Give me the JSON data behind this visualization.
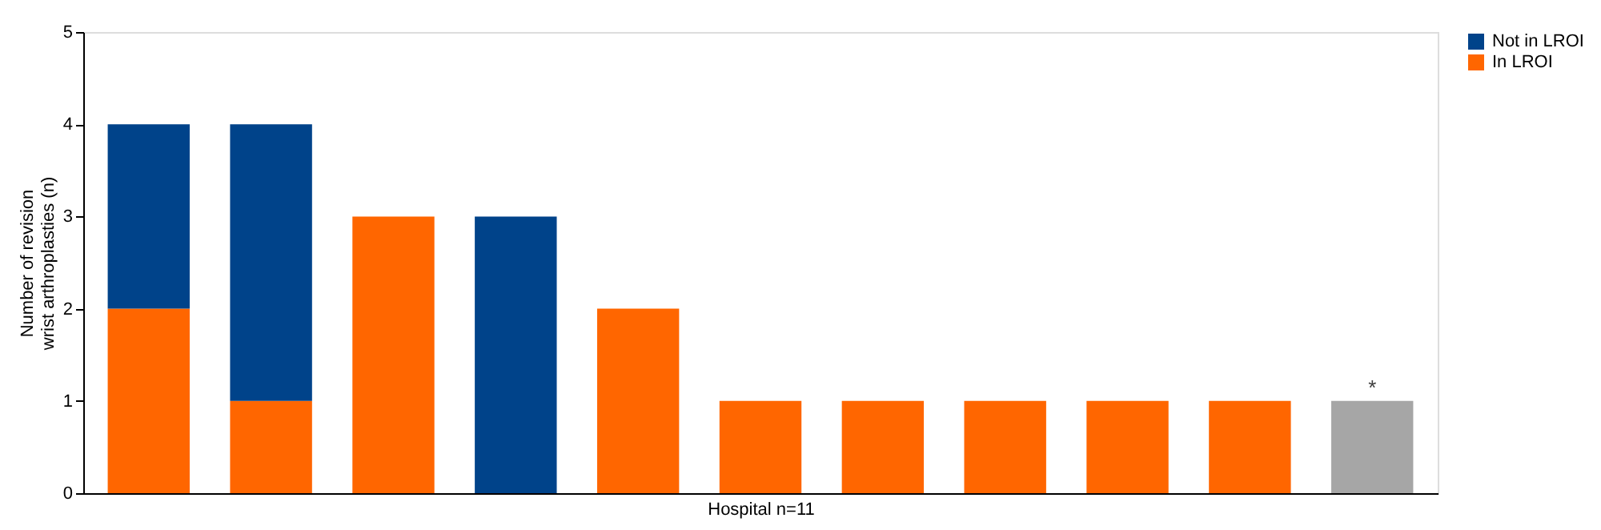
{
  "chart_data": {
    "type": "bar",
    "stacked": true,
    "xlabel": "Hospital n=11",
    "ylabel": "Number of revision\nwrist arthroplasties (n)",
    "categories": [
      null,
      null,
      null,
      null,
      null,
      null,
      null,
      null,
      null,
      null,
      null
    ],
    "series": [
      {
        "name": "In LROI",
        "color": "#ff6600",
        "values": [
          2,
          1,
          3,
          null,
          2,
          1,
          1,
          1,
          1,
          1,
          null
        ]
      },
      {
        "name": "Not in LROI",
        "color": "#00438a",
        "values": [
          2,
          3,
          null,
          3,
          null,
          null,
          null,
          null,
          null,
          null,
          null
        ]
      },
      {
        "color": "#a6a6a6",
        "values": [
          null,
          null,
          null,
          null,
          null,
          null,
          null,
          null,
          null,
          null,
          1
        ]
      }
    ],
    "ylim": [
      0,
      5
    ],
    "yticks": [
      0,
      1,
      2,
      3,
      4,
      5
    ],
    "grid": false,
    "legend": "right",
    "tick_labels": "y",
    "annotations": [
      "*"
    ]
  }
}
